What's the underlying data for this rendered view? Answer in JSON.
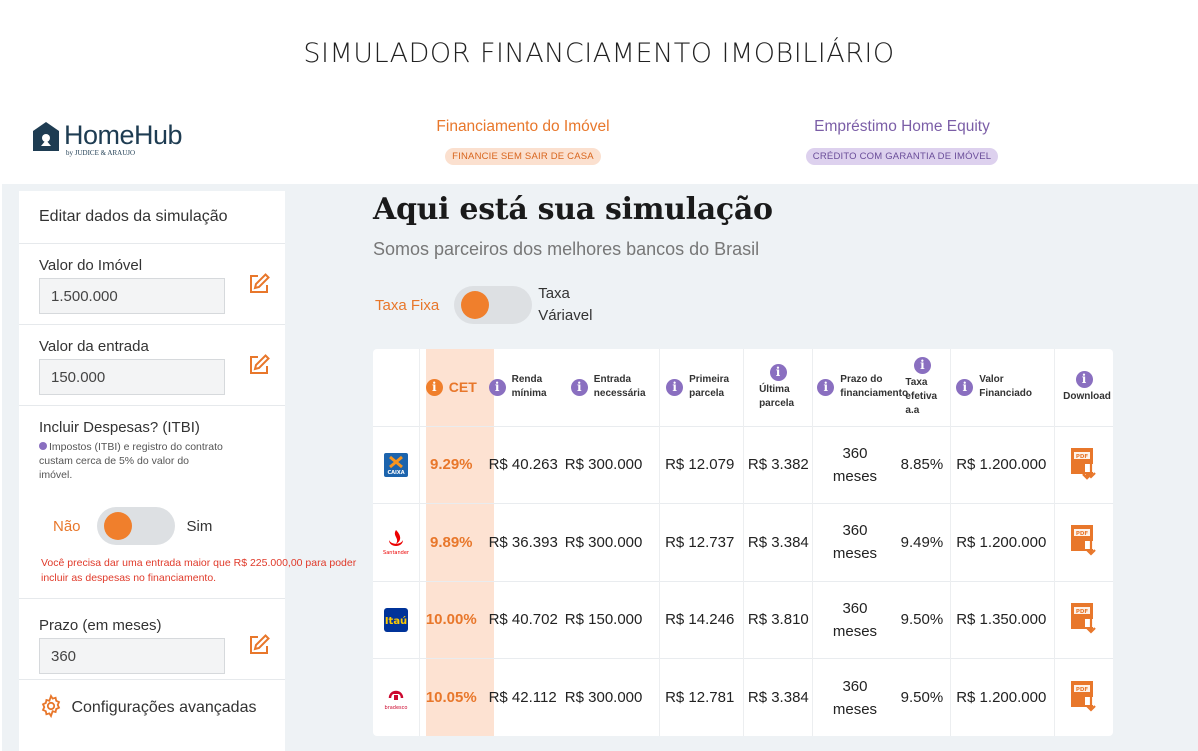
{
  "page": {
    "title": "SIMULADOR FINANCIAMENTO IMOBILIÁRIO"
  },
  "logo": {
    "main": "HomeHub",
    "sub": "by JUDICE & ARAUJO"
  },
  "nav": {
    "financiamento": {
      "label": "Financiamento do Imóvel",
      "pill": "FINANCIE SEM SAIR DE CASA"
    },
    "home_equity": {
      "label": "Empréstimo Home Equity",
      "pill": "CRÉDITO COM GARANTIA DE IMÓVEL"
    }
  },
  "sidebar": {
    "heading": "Editar dados da simulação",
    "valor_imovel": {
      "label": "Valor do Imóvel",
      "value": "1.500.000"
    },
    "valor_entrada": {
      "label": "Valor da entrada",
      "value": "150.000"
    },
    "itbi": {
      "label": "Incluir Despesas? (ITBI)",
      "note": "Impostos (ITBI) e registro do contrato custam cerca de 5% do valor do imóvel.",
      "toggle_off": "Não",
      "toggle_on": "Sim",
      "warning": "Você precisa dar uma entrada maior que R$ 225.000,00 para poder incluir as despesas no financiamento."
    },
    "prazo": {
      "label": "Prazo (em meses)",
      "value": "360"
    },
    "config": {
      "label": "Configurações avançadas"
    }
  },
  "main": {
    "title": "Aqui está sua simulação",
    "subtitle": "Somos parceiros dos melhores bancos do Brasil",
    "rate_toggle": {
      "left": "Taxa Fixa",
      "right": "Taxa Váriavel"
    }
  },
  "table": {
    "headers": {
      "cet": "CET",
      "renda": "Renda mínima",
      "entrada": "Entrada necessária",
      "primeira": "Primeira parcela",
      "ultima": "Última parcela",
      "prazo": "Prazo do financiamento",
      "taxa": "Taxa efetiva a.a",
      "valor": "Valor Financiado",
      "download": "Download"
    },
    "rows": [
      {
        "bank": "CAIXA",
        "cet": "9.29%",
        "renda": "R$ 40.263",
        "entrada": "R$ 300.000",
        "primeira": "R$ 12.079",
        "ultima": "R$ 3.382",
        "prazo_num": "360",
        "prazo_unit": "meses",
        "taxa": "8.85%",
        "valor": "R$ 1.200.000"
      },
      {
        "bank": "Santander",
        "cet": "9.89%",
        "renda": "R$ 36.393",
        "entrada": "R$ 300.000",
        "primeira": "R$ 12.737",
        "ultima": "R$ 3.384",
        "prazo_num": "360",
        "prazo_unit": "meses",
        "taxa": "9.49%",
        "valor": "R$ 1.200.000"
      },
      {
        "bank": "Itaú",
        "cet": "10.00%",
        "renda": "R$ 40.702",
        "entrada": "R$ 150.000",
        "primeira": "R$ 14.246",
        "ultima": "R$ 3.810",
        "prazo_num": "360",
        "prazo_unit": "meses",
        "taxa": "9.50%",
        "valor": "R$ 1.350.000"
      },
      {
        "bank": "bradesco",
        "cet": "10.05%",
        "renda": "R$ 42.112",
        "entrada": "R$ 300.000",
        "primeira": "R$ 12.781",
        "ultima": "R$ 3.384",
        "prazo_num": "360",
        "prazo_unit": "meses",
        "taxa": "9.50%",
        "valor": "R$ 1.200.000"
      }
    ]
  },
  "colors": {
    "accent_orange": "#f07f2c",
    "accent_purple": "#8a6fc0",
    "logo_navy": "#1e3c52"
  }
}
